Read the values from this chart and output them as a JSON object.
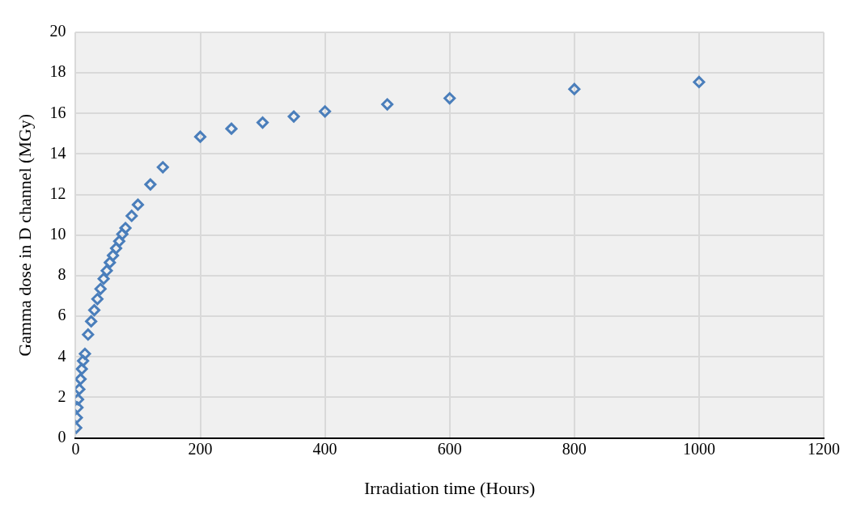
{
  "chart_data": {
    "type": "scatter",
    "xlabel": "Irradiation time (Hours)",
    "ylabel": "Gamma dose in D channel (MGy)",
    "x": [
      1,
      2,
      3,
      4,
      6,
      8,
      10,
      12,
      15,
      20,
      25,
      30,
      35,
      40,
      45,
      50,
      55,
      60,
      65,
      70,
      75,
      80,
      90,
      100,
      120,
      140,
      200,
      250,
      300,
      350,
      400,
      500,
      600,
      800,
      1000
    ],
    "series": [
      {
        "color": "#4a7ebb",
        "values": [
          0.5,
          1.0,
          1.5,
          1.9,
          2.4,
          2.9,
          3.4,
          3.8,
          4.15,
          5.1,
          5.75,
          6.3,
          6.85,
          7.35,
          7.85,
          8.25,
          8.65,
          9.0,
          9.35,
          9.7,
          10.05,
          10.35,
          10.95,
          11.5,
          12.5,
          13.35,
          14.85,
          15.25,
          15.55,
          15.85,
          16.1,
          16.45,
          16.75,
          17.2,
          17.55
        ]
      }
    ],
    "xlim": [
      0,
      1200
    ],
    "xticks": [
      0,
      200,
      400,
      600,
      800,
      1000,
      1200
    ],
    "ylim": [
      0,
      20
    ],
    "yticks": [
      0,
      2,
      4,
      6,
      8,
      10,
      12,
      14,
      16,
      18,
      20
    ],
    "grid": true,
    "legend": false,
    "marker": "diamond"
  }
}
